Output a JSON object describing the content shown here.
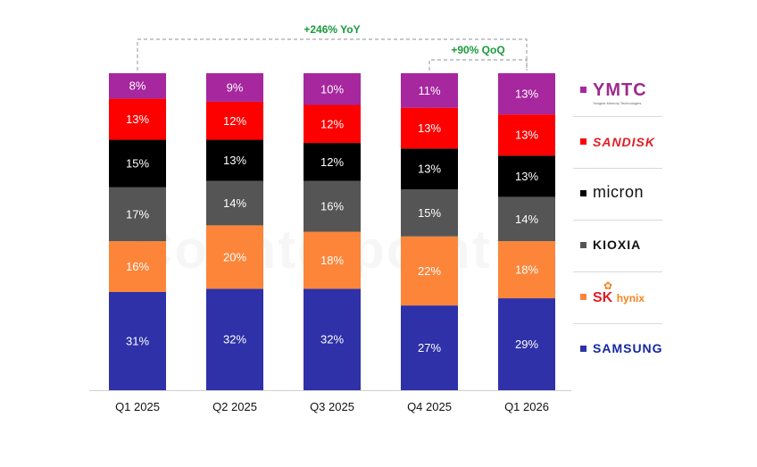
{
  "chart_data": {
    "type": "bar",
    "stacked": true,
    "categories": [
      "Q1 2025",
      "Q2 2025",
      "Q3 2025",
      "Q4 2025",
      "Q1 2026"
    ],
    "series": [
      {
        "name": "SAMSUNG",
        "color": "#2e31a8",
        "values": [
          31,
          32,
          32,
          27,
          29
        ]
      },
      {
        "name": "SK hynix",
        "color": "#fc853a",
        "values": [
          16,
          20,
          18,
          22,
          18
        ]
      },
      {
        "name": "KIOXIA",
        "color": "#555555",
        "values": [
          17,
          14,
          16,
          15,
          14
        ]
      },
      {
        "name": "micron",
        "color": "#000000",
        "values": [
          15,
          13,
          12,
          13,
          13
        ]
      },
      {
        "name": "SANDISK",
        "color": "#fd0000",
        "values": [
          13,
          12,
          12,
          13,
          13
        ]
      },
      {
        "name": "YMTC",
        "color": "#a6279e",
        "values": [
          8,
          9,
          10,
          11,
          13
        ]
      }
    ],
    "labels": [
      [
        "31%",
        "32%",
        "32%",
        "27%",
        "29%"
      ],
      [
        "16%",
        "20%",
        "18%",
        "22%",
        "18%"
      ],
      [
        "17%",
        "14%",
        "16%",
        "15%",
        "14%"
      ],
      [
        "15%",
        "13%",
        "12%",
        "13%",
        "13%"
      ],
      [
        "13%",
        "12%",
        "12%",
        "13%",
        "13%"
      ],
      [
        "8%",
        "9%",
        "10%",
        "11%",
        "13%"
      ]
    ],
    "annotations": [
      {
        "text": "+246% YoY",
        "from": "Q1 2025",
        "to": "Q1 2026",
        "color": "#1a9a3e"
      },
      {
        "text": "+90% QoQ",
        "from": "Q4 2025",
        "to": "Q1 2026",
        "color": "#1a9a3e"
      }
    ],
    "legend_position": "right",
    "grid": false,
    "title": "",
    "xlabel": "",
    "ylabel": ""
  },
  "watermark": "Counterpoint",
  "legend": {
    "ymtc": "YMTC",
    "ymtc_sub": "Yangtze Memory Technologies",
    "sandisk": "SANDISK",
    "micron": "micron",
    "kioxia": "KIOXIA",
    "sk": "SK",
    "sk_small": "hynix",
    "samsung": "SAMSUNG"
  }
}
